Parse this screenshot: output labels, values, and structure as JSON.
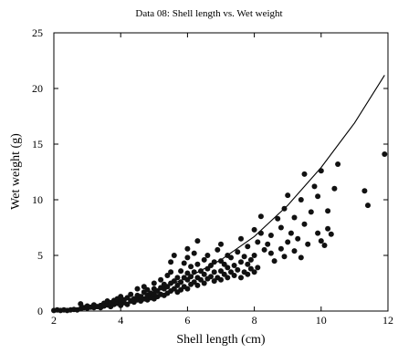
{
  "chart_data": {
    "type": "scatter",
    "title": "Data 08: Shell length vs. Wet weight",
    "xlabel": "Shell length (cm)",
    "ylabel": "Wet weight (g)",
    "xlim": [
      2,
      12
    ],
    "ylim": [
      0,
      25
    ],
    "xticks": [
      "2",
      "4",
      "6",
      "8",
      "10",
      "12"
    ],
    "yticks": [
      "0",
      "5",
      "10",
      "15",
      "20",
      "25"
    ],
    "grid": false,
    "legend": "none",
    "colors": {
      "points": "#111111",
      "curve": "#000000",
      "axes": "#000000"
    },
    "fit_curve": {
      "x": [
        2.0,
        3.0,
        4.0,
        5.0,
        6.0,
        7.0,
        8.0,
        9.0,
        10.0,
        11.0,
        11.9
      ],
      "y": [
        0.05,
        0.3,
        0.85,
        1.75,
        3.0,
        4.6,
        6.7,
        9.5,
        12.9,
        16.9,
        21.2
      ]
    },
    "series": [
      {
        "points": [
          [
            2.0,
            0.05
          ],
          [
            2.1,
            0.1
          ],
          [
            2.2,
            0.05
          ],
          [
            2.3,
            0.1
          ],
          [
            2.4,
            0.05
          ],
          [
            2.5,
            0.1
          ],
          [
            2.6,
            0.15
          ],
          [
            2.7,
            0.1
          ],
          [
            2.8,
            0.2
          ],
          [
            2.8,
            0.65
          ],
          [
            2.9,
            0.3
          ],
          [
            3.0,
            0.25
          ],
          [
            3.0,
            0.45
          ],
          [
            3.1,
            0.35
          ],
          [
            3.2,
            0.3
          ],
          [
            3.2,
            0.55
          ],
          [
            3.3,
            0.4
          ],
          [
            3.4,
            0.5
          ],
          [
            3.4,
            0.3
          ],
          [
            3.5,
            0.45
          ],
          [
            3.5,
            0.7
          ],
          [
            3.6,
            0.55
          ],
          [
            3.6,
            0.9
          ],
          [
            3.7,
            0.4
          ],
          [
            3.7,
            0.75
          ],
          [
            3.8,
            0.6
          ],
          [
            3.8,
            0.95
          ],
          [
            3.9,
            0.7
          ],
          [
            3.9,
            1.1
          ],
          [
            4.0,
            0.5
          ],
          [
            4.0,
            0.85
          ],
          [
            4.0,
            1.3
          ],
          [
            4.1,
            0.75
          ],
          [
            4.1,
            1.0
          ],
          [
            4.2,
            0.6
          ],
          [
            4.2,
            1.2
          ],
          [
            4.3,
            0.9
          ],
          [
            4.3,
            1.5
          ],
          [
            4.4,
            0.8
          ],
          [
            4.4,
            1.1
          ],
          [
            4.5,
            1.0
          ],
          [
            4.5,
            1.4
          ],
          [
            4.5,
            2.0
          ],
          [
            4.6,
            0.9
          ],
          [
            4.6,
            1.3
          ],
          [
            4.7,
            1.1
          ],
          [
            4.7,
            1.7
          ],
          [
            4.7,
            2.2
          ],
          [
            4.8,
            1.0
          ],
          [
            4.8,
            1.4
          ],
          [
            4.8,
            1.9
          ],
          [
            4.9,
            1.2
          ],
          [
            4.9,
            1.6
          ],
          [
            5.0,
            1.1
          ],
          [
            5.0,
            1.5
          ],
          [
            5.0,
            2.0
          ],
          [
            5.0,
            2.5
          ],
          [
            5.1,
            1.3
          ],
          [
            5.1,
            1.8
          ],
          [
            5.2,
            1.5
          ],
          [
            5.2,
            2.1
          ],
          [
            5.2,
            2.8
          ],
          [
            5.3,
            1.4
          ],
          [
            5.3,
            2.0
          ],
          [
            5.3,
            2.4
          ],
          [
            5.4,
            1.6
          ],
          [
            5.4,
            2.2
          ],
          [
            5.4,
            3.2
          ],
          [
            5.5,
            1.8
          ],
          [
            5.5,
            2.5
          ],
          [
            5.5,
            3.5
          ],
          [
            5.5,
            4.4
          ],
          [
            5.6,
            2.0
          ],
          [
            5.6,
            2.7
          ],
          [
            5.6,
            5.0
          ],
          [
            5.7,
            1.7
          ],
          [
            5.7,
            2.3
          ],
          [
            5.7,
            3.0
          ],
          [
            5.8,
            1.9
          ],
          [
            5.8,
            2.6
          ],
          [
            5.8,
            3.6
          ],
          [
            5.9,
            2.2
          ],
          [
            5.9,
            3.0
          ],
          [
            5.9,
            4.3
          ],
          [
            6.0,
            2.0
          ],
          [
            6.0,
            2.8
          ],
          [
            6.0,
            3.4
          ],
          [
            6.0,
            4.8
          ],
          [
            6.0,
            5.6
          ],
          [
            6.1,
            2.4
          ],
          [
            6.1,
            3.1
          ],
          [
            6.1,
            4.0
          ],
          [
            6.2,
            2.6
          ],
          [
            6.2,
            3.5
          ],
          [
            6.2,
            5.2
          ],
          [
            6.3,
            2.3
          ],
          [
            6.3,
            3.0
          ],
          [
            6.3,
            4.2
          ],
          [
            6.3,
            6.3
          ],
          [
            6.4,
            2.8
          ],
          [
            6.4,
            3.6
          ],
          [
            6.5,
            2.5
          ],
          [
            6.5,
            3.3
          ],
          [
            6.5,
            4.6
          ],
          [
            6.6,
            2.9
          ],
          [
            6.6,
            3.8
          ],
          [
            6.6,
            5.0
          ],
          [
            6.7,
            3.1
          ],
          [
            6.7,
            4.1
          ],
          [
            6.8,
            2.7
          ],
          [
            6.8,
            3.5
          ],
          [
            6.8,
            4.4
          ],
          [
            6.9,
            3.0
          ],
          [
            6.9,
            5.5
          ],
          [
            7.0,
            2.8
          ],
          [
            7.0,
            3.6
          ],
          [
            7.0,
            4.5
          ],
          [
            7.0,
            6.0
          ],
          [
            7.1,
            3.3
          ],
          [
            7.1,
            4.2
          ],
          [
            7.2,
            3.0
          ],
          [
            7.2,
            3.9
          ],
          [
            7.2,
            5.0
          ],
          [
            7.3,
            3.5
          ],
          [
            7.3,
            4.8
          ],
          [
            7.4,
            3.2
          ],
          [
            7.4,
            4.1
          ],
          [
            7.5,
            3.7
          ],
          [
            7.5,
            5.3
          ],
          [
            7.6,
            3.0
          ],
          [
            7.6,
            4.4
          ],
          [
            7.6,
            6.5
          ],
          [
            7.7,
            3.5
          ],
          [
            7.7,
            4.9
          ],
          [
            7.8,
            3.3
          ],
          [
            7.8,
            4.2
          ],
          [
            7.8,
            5.8
          ],
          [
            7.9,
            3.8
          ],
          [
            7.9,
            4.6
          ],
          [
            8.0,
            3.5
          ],
          [
            8.0,
            5.0
          ],
          [
            8.0,
            7.3
          ],
          [
            8.1,
            3.9
          ],
          [
            8.1,
            6.2
          ],
          [
            8.2,
            7.0
          ],
          [
            8.2,
            8.5
          ],
          [
            8.3,
            5.5
          ],
          [
            8.4,
            6.0
          ],
          [
            8.5,
            5.2
          ],
          [
            8.5,
            6.8
          ],
          [
            8.6,
            4.5
          ],
          [
            8.7,
            8.3
          ],
          [
            8.8,
            5.6
          ],
          [
            8.8,
            7.5
          ],
          [
            8.9,
            4.9
          ],
          [
            8.9,
            9.2
          ],
          [
            9.0,
            6.2
          ],
          [
            9.0,
            10.4
          ],
          [
            9.1,
            7.0
          ],
          [
            9.2,
            5.4
          ],
          [
            9.2,
            8.4
          ],
          [
            9.3,
            6.5
          ],
          [
            9.4,
            4.8
          ],
          [
            9.4,
            10.0
          ],
          [
            9.5,
            7.8
          ],
          [
            9.5,
            12.3
          ],
          [
            9.6,
            6.0
          ],
          [
            9.7,
            8.9
          ],
          [
            9.8,
            11.2
          ],
          [
            9.9,
            7.0
          ],
          [
            9.9,
            10.3
          ],
          [
            10.0,
            12.6
          ],
          [
            10.0,
            6.3
          ],
          [
            10.1,
            5.9
          ],
          [
            10.2,
            7.4
          ],
          [
            10.2,
            9.0
          ],
          [
            10.3,
            6.9
          ],
          [
            10.4,
            11.0
          ],
          [
            10.5,
            13.2
          ],
          [
            11.3,
            10.8
          ],
          [
            11.4,
            9.5
          ],
          [
            11.9,
            14.1
          ]
        ]
      }
    ]
  }
}
